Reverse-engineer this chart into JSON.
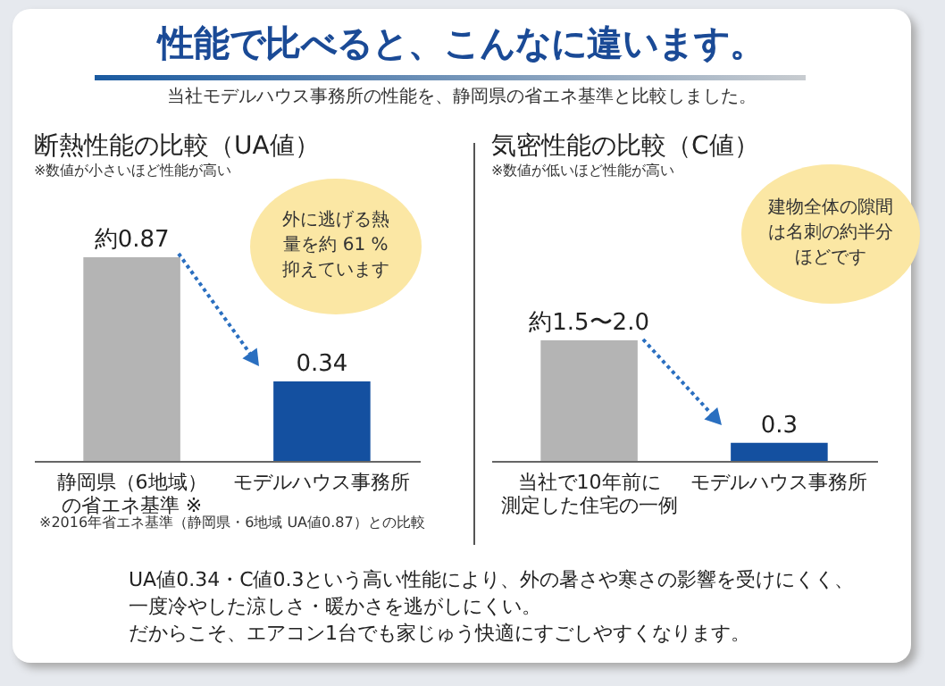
{
  "chart_data": [
    {
      "type": "other",
      "title": "性能で比べると、こんなに違います。",
      "subtitle": "当社モデルハウス事務所の性能を、静岡県の省エネ基準と比較しました。",
      "annotations": [
        "UA値0.34・C値0.3という高い性能により、外の暑さや寒さの影響を受けにくく、",
        "一度冷やした涼しさ・暖かさを逃がしにくい。",
        "だからこそ、エアコン1台でも家じゅう快適にすごしやすくなります。"
      ]
    },
    {
      "type": "bar",
      "title": "断熱性能の比較（UA値）",
      "subtitle": "※数値が小さいほど性能が高い",
      "categories": [
        "静岡県（6地域）の省エネ基準 ※",
        "モデルハウス事務所"
      ],
      "values": [
        0.87,
        0.34
      ],
      "colors": [
        "#b4b4b4",
        "#1450a0"
      ],
      "value_labels": [
        "約0.87",
        "0.34"
      ],
      "annotations": [
        "外に逃げる熱量を約 61 %抑えています",
        "※2016年省エネ基準（静岡県・6地域 UA値0.87）との比較"
      ]
    },
    {
      "type": "bar",
      "title": "気密性能の比較（C値）",
      "subtitle": "※数値が低いほど性能が高い",
      "categories": [
        "当社で10年前に測定した住宅の一例",
        "モデルハウス事務所"
      ],
      "values": [
        2.0,
        0.3
      ],
      "colors": [
        "#b4b4b4",
        "#1450a0"
      ],
      "value_labels": [
        "約1.5〜2.0",
        "0.3"
      ],
      "annotations": [
        "建物全体の隙間は名刺の約半分ほどです"
      ]
    }
  ]
}
